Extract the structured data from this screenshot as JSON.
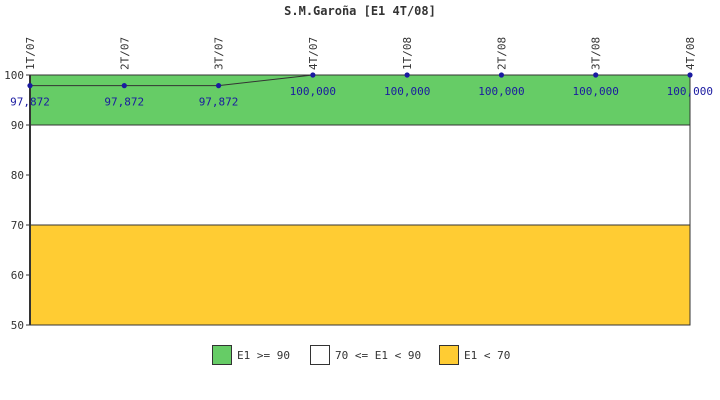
{
  "chart_data": {
    "type": "line",
    "title": "S.M.Garoña [E1 4T/08]",
    "categories": [
      "1T/07",
      "2T/07",
      "3T/07",
      "4T/07",
      "1T/08",
      "2T/08",
      "3T/08",
      "4T/08"
    ],
    "values": [
      97.872,
      97.872,
      97.872,
      100,
      100,
      100,
      100,
      100
    ],
    "data_labels": [
      "97,872",
      "97,872",
      "97,872",
      "100,000",
      "100,000",
      "100,000",
      "100,000",
      "100,000"
    ],
    "ylim": [
      50,
      100
    ],
    "yticks": [
      "100",
      "90",
      "80",
      "70",
      "60",
      "50"
    ],
    "ytick_values": [
      100,
      90,
      80,
      70,
      60,
      50
    ],
    "bands": [
      {
        "from": 90,
        "to": 100,
        "color": "#66cc66",
        "label": "E1 >= 90"
      },
      {
        "from": 70,
        "to": 90,
        "color": "#ffffff",
        "label": "70 <= E1 < 90"
      },
      {
        "from": 50,
        "to": 70,
        "color": "#ffcc33",
        "label": "E1 < 70"
      }
    ],
    "line_color": "#333333",
    "marker_color": "#1a1aa0"
  }
}
